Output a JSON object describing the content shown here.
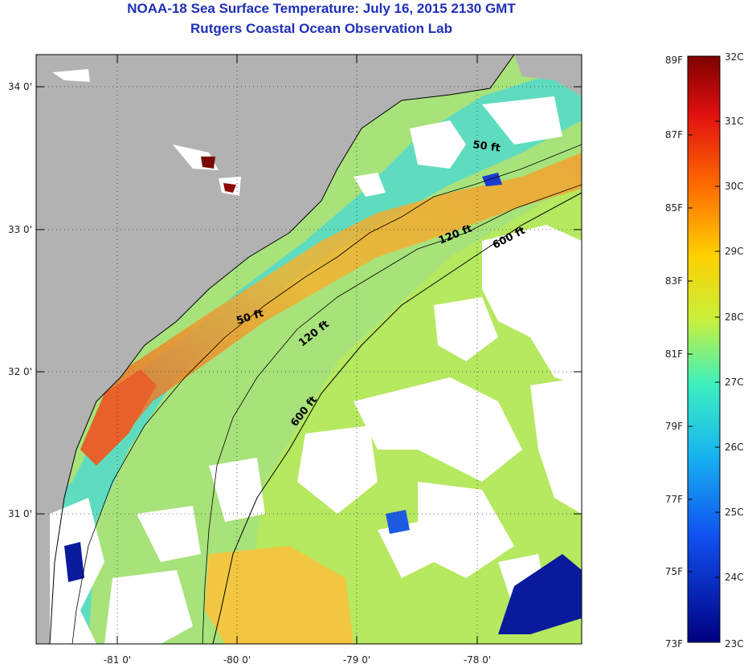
{
  "header": {
    "title": "NOAA-18 Sea Surface Temperature:  July 16, 2015 2130 GMT",
    "subtitle": "Rutgers Coastal Ocean Observation Lab"
  },
  "map": {
    "lon_ticks": [
      "-81 0'",
      "-80 0'",
      "-79 0'",
      "-78 0'"
    ],
    "lat_ticks": [
      "34 0'",
      "33 0'",
      "32 0'",
      "31 0'"
    ],
    "contours": [
      {
        "label": "50 ft",
        "depth_ft": 50
      },
      {
        "label": "120 ft",
        "depth_ft": 120
      },
      {
        "label": "600 ft",
        "depth_ft": 600
      }
    ],
    "colors": {
      "land": "#b2b2b2",
      "cloud": "#ffffff",
      "sst_warm": "#e8702a",
      "sst_mid": "#b9e25c",
      "sst_cool": "#38d6c2",
      "sst_cold": "#0a1a9c"
    }
  },
  "colorbar": {
    "fahrenheit_labels": [
      "89F",
      "87F",
      "85F",
      "83F",
      "81F",
      "79F",
      "77F",
      "75F",
      "73F"
    ],
    "celsius_labels": [
      "32C",
      "31C",
      "30C",
      "29C",
      "28C",
      "27C",
      "26C",
      "25C",
      "24C",
      "23C"
    ],
    "stops": [
      "#7f0000",
      "#e01010",
      "#ff6a00",
      "#ffd000",
      "#c8f03c",
      "#3cf0c0",
      "#18b4f0",
      "#1050f0",
      "#000080"
    ]
  }
}
